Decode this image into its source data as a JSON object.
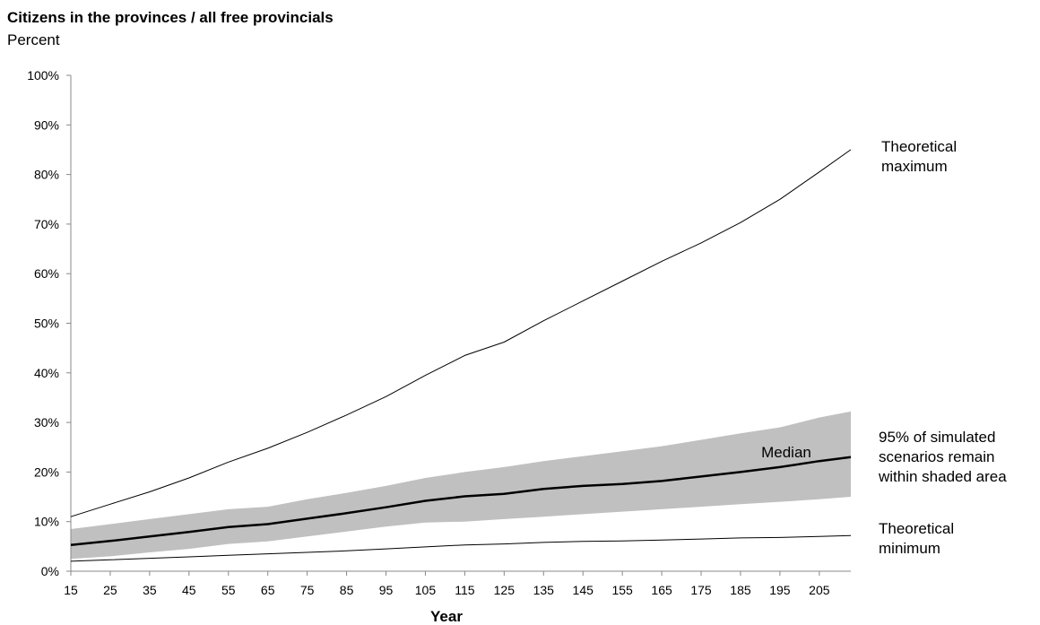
{
  "chart_data": {
    "type": "line",
    "title": "Citizens in the provinces / all free provincials",
    "subtitle": "Percent",
    "xlabel": "Year",
    "ylabel": "",
    "xlim": [
      15,
      213
    ],
    "ylim": [
      0,
      100
    ],
    "y_unit": "%",
    "x_ticks": [
      15,
      25,
      35,
      45,
      55,
      65,
      75,
      85,
      95,
      105,
      115,
      125,
      135,
      145,
      155,
      165,
      175,
      185,
      195,
      205
    ],
    "y_ticks": [
      0,
      10,
      20,
      30,
      40,
      50,
      60,
      70,
      80,
      90,
      100
    ],
    "grid": false,
    "x": [
      15,
      25,
      35,
      45,
      55,
      65,
      75,
      85,
      95,
      105,
      115,
      125,
      135,
      145,
      155,
      165,
      175,
      185,
      195,
      205,
      213
    ],
    "series": [
      {
        "name": "Theoretical maximum",
        "values": [
          11,
          13.5,
          16,
          18.8,
          22,
          24.8,
          28,
          31.5,
          35.2,
          39.5,
          43.5,
          46.2,
          50.5,
          54.5,
          58.5,
          62.5,
          66.2,
          70.3,
          75,
          80.5,
          85
        ]
      },
      {
        "name": "Median",
        "values": [
          5.3,
          6.1,
          7,
          7.9,
          8.9,
          9.5,
          10.6,
          11.7,
          12.9,
          14.2,
          15.1,
          15.6,
          16.6,
          17.2,
          17.6,
          18.2,
          19.1,
          20,
          21,
          22.2,
          23
        ]
      },
      {
        "name": "95% of simulated scenarios remain within shaded area",
        "lower": [
          2.5,
          3,
          3.8,
          4.5,
          5.5,
          6,
          7,
          8,
          9,
          9.8,
          10,
          10.5,
          11,
          11.5,
          12,
          12.5,
          13,
          13.5,
          14,
          14.5,
          15
        ],
        "upper": [
          8.5,
          9.5,
          10.5,
          11.5,
          12.5,
          13,
          14.5,
          15.8,
          17.2,
          18.8,
          20,
          21,
          22.2,
          23.2,
          24.2,
          25.2,
          26.5,
          27.8,
          29,
          31,
          32.2
        ]
      },
      {
        "name": "Theoretical minimum",
        "values": [
          2,
          2.3,
          2.6,
          2.9,
          3.2,
          3.5,
          3.8,
          4.1,
          4.5,
          4.9,
          5.3,
          5.5,
          5.8,
          6,
          6.1,
          6.3,
          6.5,
          6.7,
          6.8,
          7,
          7.2
        ]
      }
    ],
    "annotations": {
      "max_label": [
        "Theoretical",
        "maximum"
      ],
      "min_label": [
        "Theoretical",
        "minimum"
      ],
      "band_label": [
        "95% of simulated",
        "scenarios remain",
        "within shaded area"
      ],
      "median_label": "Median"
    },
    "colors": {
      "band": "#c0c0c0",
      "line": "#000000"
    }
  }
}
